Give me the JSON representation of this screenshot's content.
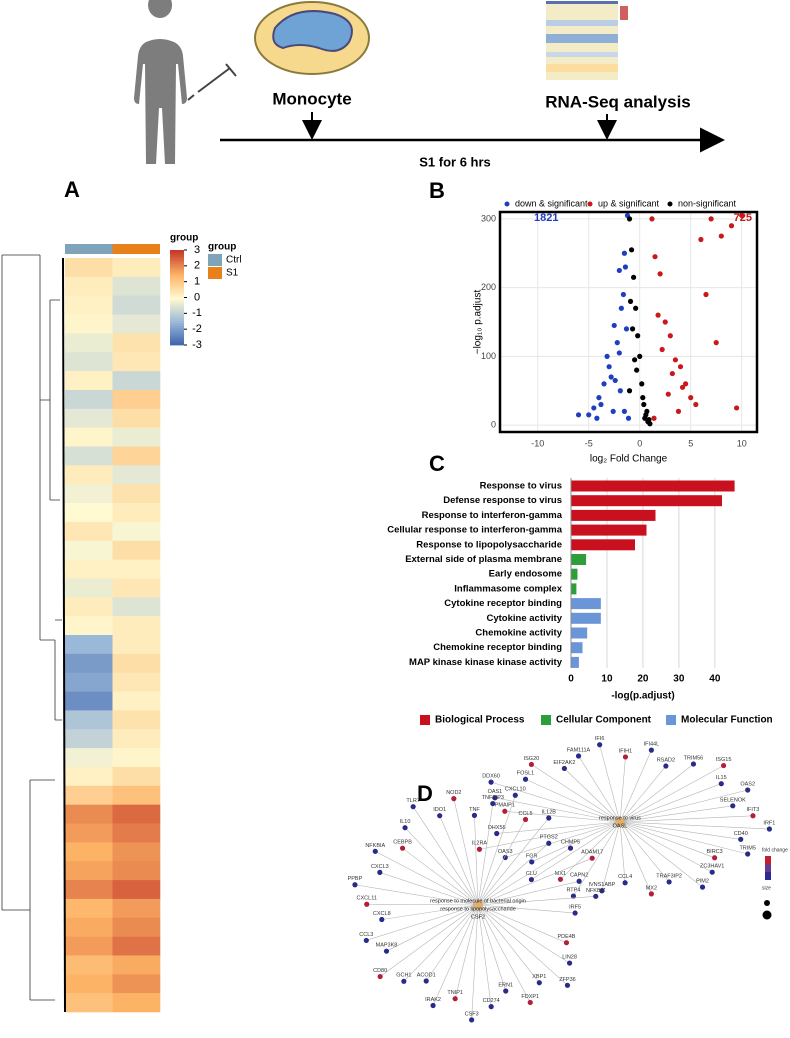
{
  "schematic": {
    "cell_label": "Monocyte",
    "analysis_label": "RNA-Seq analysis",
    "treatment_label": "S1 for 6 hrs"
  },
  "panel_labels": [
    "A",
    "B",
    "C",
    "D"
  ],
  "chart_data": [
    {
      "type": "heatmap",
      "colorbar_title": "group",
      "legend_title": "group",
      "zlim": [
        -3,
        3
      ],
      "zticks": [
        3,
        2,
        1,
        0,
        -1,
        -2,
        -3
      ],
      "colorscale": [
        "#3a5fa9",
        "#9ab8d8",
        "#fffad2",
        "#fdb366",
        "#c53a2a"
      ],
      "series": [
        {
          "name": "Ctrl",
          "color": "#7fa3b8",
          "values": [
            0.6,
            0.3,
            0.2,
            0.1,
            -0.3,
            -0.5,
            0.2,
            -0.8,
            -0.4,
            0.1,
            -0.6,
            0.3,
            -0.2,
            0.0,
            0.4,
            -0.1,
            0.2,
            -0.3,
            0.3,
            0.1,
            -1.5,
            -2.0,
            -1.8,
            -2.2,
            -1.2,
            -0.9,
            -0.2,
            0.2,
            0.9,
            2.0,
            1.8,
            1.5,
            1.7,
            2.1,
            1.4,
            1.6,
            1.8,
            1.3,
            1.5,
            1.2
          ]
        },
        {
          "name": "S1",
          "color": "#e8811a",
          "values": [
            0.3,
            -0.5,
            -0.7,
            -0.4,
            0.5,
            0.4,
            -0.8,
            0.9,
            0.6,
            -0.3,
            0.8,
            -0.4,
            0.5,
            0.3,
            -0.1,
            0.6,
            0.2,
            0.4,
            -0.5,
            0.3,
            0.3,
            0.6,
            0.4,
            0.2,
            0.5,
            0.3,
            0.1,
            0.6,
            1.2,
            2.4,
            2.2,
            1.9,
            2.0,
            2.5,
            1.8,
            2.0,
            2.3,
            1.6,
            1.9,
            1.5
          ]
        }
      ]
    },
    {
      "type": "scatter",
      "xlabel": "log₂ Fold Change",
      "ylabel": "−log₁₀ p.adjust",
      "xlim": [
        -13.7,
        11.5
      ],
      "xticks": [
        -10,
        -5,
        0,
        5,
        10
      ],
      "ylim": [
        -10,
        310
      ],
      "yticks": [
        0,
        100,
        200,
        300
      ],
      "grid": true,
      "series": [
        {
          "name": "down & significant",
          "color": "#1f3fbf",
          "count": 1821,
          "x": [
            -1.2,
            -1.5,
            -2,
            -2.5,
            -3,
            -3.5,
            -4,
            -4.5,
            -5,
            -1.8,
            -2.2,
            -3.2,
            -2.8,
            -1.4,
            -1.6,
            -2,
            -2.4,
            -1.9,
            -1.3,
            -3.8,
            -1.1,
            -1.5,
            -2.6,
            -4.2,
            -6
          ],
          "values": [
            305,
            250,
            225,
            145,
            85,
            60,
            40,
            25,
            15,
            170,
            120,
            100,
            70,
            230,
            190,
            105,
            65,
            50,
            140,
            30,
            10,
            20,
            20,
            10,
            15
          ]
        },
        {
          "name": "up & significant",
          "color": "#c8191c",
          "count": 725,
          "x": [
            1.2,
            1.5,
            2,
            2.5,
            3,
            3.5,
            4,
            4.5,
            5,
            6,
            7,
            8,
            9,
            10,
            2.2,
            3.2,
            4.2,
            5.5,
            1.8,
            2.8,
            6.5,
            7.5,
            1.4,
            3.8,
            9.5
          ],
          "values": [
            300,
            245,
            220,
            150,
            130,
            95,
            85,
            60,
            40,
            270,
            300,
            275,
            290,
            305,
            110,
            75,
            55,
            30,
            160,
            45,
            190,
            120,
            10,
            20,
            25
          ]
        },
        {
          "name": "non-significant",
          "color": "#000000",
          "x": [
            -1,
            -0.8,
            -0.6,
            -0.4,
            -0.2,
            0,
            0.2,
            0.4,
            0.6,
            0.8,
            1,
            -0.9,
            -0.7,
            -0.3,
            0.3,
            0.7,
            -0.5,
            0.5,
            -1,
            0.9
          ],
          "values": [
            300,
            255,
            215,
            170,
            130,
            100,
            60,
            30,
            15,
            5,
            2,
            180,
            140,
            80,
            40,
            20,
            95,
            10,
            50,
            8
          ]
        }
      ]
    },
    {
      "type": "bar",
      "orientation": "horizontal",
      "xlabel": "-log(p.adjust)",
      "xlim": [
        0,
        47
      ],
      "xticks": [
        0,
        10,
        20,
        30,
        40
      ],
      "grid": true,
      "categories": [
        "Response to virus",
        "Defense response to virus",
        "Response to interferon-gamma",
        "Cellular response to interferon-gamma",
        "Response to lipopolysaccharide",
        "External side of plasma membrane",
        "Early endosome",
        "Inflammasome complex",
        "Cytokine receptor binding",
        "Cytokine activity",
        "Chemokine activity",
        "Chemokine receptor binding",
        "MAP kinase kinase kinase activity"
      ],
      "series": [
        {
          "name": "Biological Process",
          "color": "#c8101e",
          "values": [
            45.5,
            42,
            23.5,
            21,
            17.8,
            null,
            null,
            null,
            null,
            null,
            null,
            null,
            null
          ]
        },
        {
          "name": "Cellular Component",
          "color": "#2e9e3a",
          "values": [
            null,
            null,
            null,
            null,
            null,
            4.2,
            1.8,
            1.5,
            null,
            null,
            null,
            null,
            null
          ]
        },
        {
          "name": "Molecular Function",
          "color": "#6a96d8",
          "values": [
            null,
            null,
            null,
            null,
            null,
            null,
            null,
            null,
            8.3,
            8.3,
            4.5,
            3.2,
            2.2
          ]
        }
      ]
    }
  ],
  "network": {
    "legend": [
      "fold change",
      "size"
    ],
    "clusters": [
      {
        "hubs": [
          "response to virus",
          "OASL"
        ],
        "genes": [
          "PMAIP1",
          "OAS1",
          "DDX60",
          "FOSL1",
          "ISG20",
          "EIF2AK2",
          "FAM111A",
          "IFI6",
          "IFIH1",
          "IFI44L",
          "RSAD2",
          "TRIM56",
          "ISG15",
          "IL15",
          "OAS2",
          "SELENOK",
          "IFIT3",
          "IRF1",
          "CD40",
          "TRIM5",
          "BIRC3",
          "ZC3HAV1",
          "PIM2",
          "TRAF3IP2",
          "MX2",
          "CCL4",
          "IVNS1ABP",
          "RTP4",
          "MX1",
          "CLU",
          "FGR",
          "OAS3",
          "IL2RA",
          "DHX58"
        ]
      },
      {
        "hubs": [
          "response to molecule of bacterial origin",
          "response to lipopolysaccharide",
          "CSF2"
        ],
        "genes": [
          "PDE4B",
          "LIN28",
          "ZFP36",
          "XBP1",
          "FDXP1",
          "ERN1",
          "CD274",
          "CSF3",
          "TNIP1",
          "IRAK2",
          "ACOD1",
          "GCH1",
          "CD80",
          "MAP3K8",
          "CCL3",
          "CXCL8",
          "CXCL11",
          "PPBP",
          "CXCL3",
          "NFKBIA",
          "CEBPB",
          "IL10",
          "TLR7",
          "IDO1",
          "NOD2",
          "TNF",
          "TNFAIP3",
          "CXCL10",
          "CCL5",
          "IL12B",
          "PTGS2",
          "CHMP5",
          "ADAM17",
          "CAPN2",
          "NFKBIZ",
          "IRF5"
        ]
      }
    ]
  }
}
